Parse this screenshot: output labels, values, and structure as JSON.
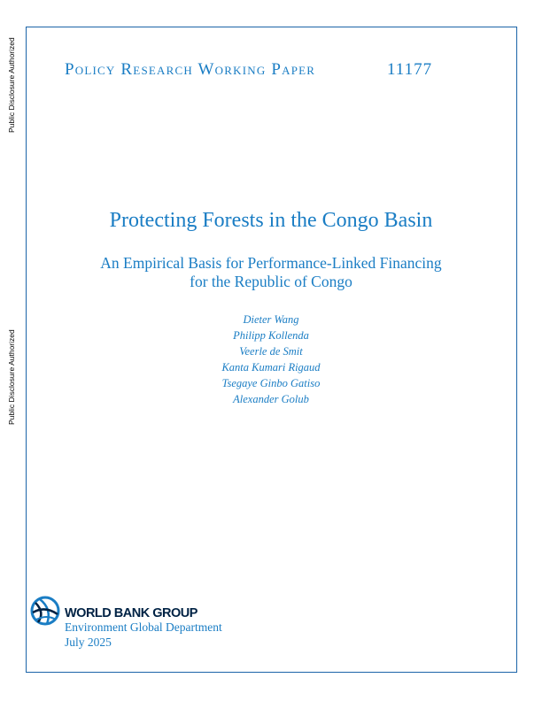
{
  "side_label": "Public Disclosure Authorized",
  "series": "Policy Research Working Paper",
  "number": "11177",
  "title": "Protecting Forests in the Congo Basin",
  "subtitle": [
    "An Empirical Basis for Performance-Linked Financing",
    "for the Republic of Congo"
  ],
  "authors": [
    "Dieter Wang",
    "Philipp Kollenda",
    "Veerle de Smit",
    "Kanta Kumari Rigaud",
    "Tsegaye Ginbo Gatiso",
    "Alexander Golub"
  ],
  "logo": {
    "text": "WORLD BANK GROUP",
    "icon": "globe-icon"
  },
  "department": "Environment Global Department",
  "date": "July 2025",
  "colors": {
    "accent": "#1a7dc4",
    "frame": "#1b64a8",
    "logo_dark": "#002244"
  }
}
